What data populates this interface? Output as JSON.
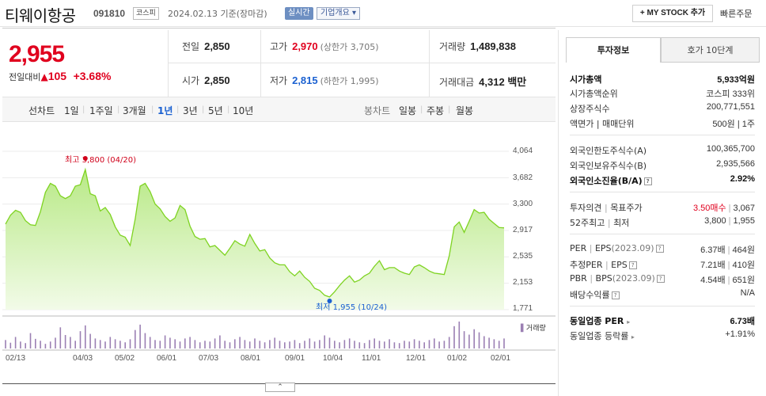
{
  "header": {
    "name": "티웨이항공",
    "code": "091810",
    "market": "코스피",
    "date": "2024.02.13  기준(장마감)",
    "realtime": "실시간",
    "overview": "기업개요 ▾",
    "mystock_plus": "+",
    "mystock": "MY STOCK 추가",
    "quick_order": "빠른주문"
  },
  "price": {
    "current": "2,955",
    "change_label": "전일대비",
    "change_arrow": "▲",
    "change_value": "105",
    "change_pct": "+3.68%"
  },
  "stats": {
    "prev_label": "전일",
    "prev": "2,850",
    "high_label": "고가",
    "high": "2,970",
    "upper": "(상한가 3,705)",
    "volume_label": "거래량",
    "volume": "1,489,838",
    "open_label": "시가",
    "open": "2,850",
    "low_label": "저가",
    "low": "2,815",
    "lower": "(하한가 1,995)",
    "amount_label": "거래대금",
    "amount": "4,312 백만"
  },
  "period_bar": {
    "line_label": "선차트",
    "periods": [
      "1일",
      "1주일",
      "3개월",
      "1년",
      "3년",
      "5년",
      "10년"
    ],
    "selected": "1년",
    "candle_label": "봉차트",
    "candles": [
      "일봉",
      "주봉",
      "월봉"
    ]
  },
  "chart_data": {
    "type": "area",
    "series": [
      {
        "values": [
          3010,
          3140,
          3210,
          3180,
          3060,
          3000,
          2990,
          3190,
          3470,
          3600,
          3560,
          3420,
          3380,
          3420,
          3560,
          3580,
          3800,
          3450,
          3420,
          3200,
          3250,
          3150,
          2970,
          2850,
          2820,
          2700,
          3080,
          3560,
          3600,
          3480,
          3300,
          3230,
          3120,
          3050,
          3100,
          3280,
          3220,
          2980,
          2830,
          2790,
          2800,
          2680,
          2700,
          2630,
          2560,
          2660,
          2770,
          2720,
          2690,
          2860,
          2730,
          2620,
          2640,
          2520,
          2450,
          2420,
          2420,
          2320,
          2260,
          2330,
          2240,
          2180,
          2080,
          2050,
          1980,
          1955,
          2030,
          2120,
          2200,
          2260,
          2170,
          2200,
          2260,
          2300,
          2400,
          2480,
          2350,
          2380,
          2380,
          2330,
          2300,
          2280,
          2390,
          2420,
          2380,
          2330,
          2300,
          2290,
          2280,
          2550,
          2970,
          3040,
          2890,
          3050,
          3220,
          3170,
          3180,
          3080,
          3020,
          2960,
          2955
        ]
      }
    ],
    "x_ticks": [
      "02/13",
      "04/03",
      "05/02",
      "06/01",
      "07/03",
      "08/01",
      "09/01",
      "10/04",
      "11/01",
      "12/01",
      "01/02",
      "02/01"
    ],
    "y_ticks": [
      "4,064",
      "3,682",
      "3,300",
      "2,917",
      "2,535",
      "2,153",
      "1,771"
    ],
    "ylim": [
      1771,
      4064
    ],
    "high_annotation": "최고 3,800 (04/20)",
    "low_annotation": "최저 1,955 (10/24)",
    "volume_label": "거래량",
    "volume": [
      22,
      15,
      30,
      18,
      14,
      40,
      25,
      20,
      12,
      18,
      28,
      55,
      35,
      30,
      20,
      45,
      60,
      38,
      26,
      22,
      18,
      30,
      24,
      20,
      16,
      24,
      48,
      62,
      40,
      30,
      22,
      20,
      34,
      28,
      24,
      18,
      26,
      30,
      22,
      16,
      20,
      18,
      26,
      34,
      20,
      16,
      24,
      30,
      22,
      18,
      26,
      20,
      16,
      22,
      28,
      20,
      16,
      18,
      22,
      14,
      20,
      26,
      18,
      22,
      34,
      28,
      20,
      16,
      22,
      26,
      20,
      16,
      14,
      22,
      26,
      20,
      18,
      24,
      16,
      14,
      20,
      18,
      24,
      20,
      16,
      22,
      26,
      18,
      20,
      30,
      58,
      70,
      45,
      36,
      50,
      42,
      32,
      28,
      24,
      20,
      26
    ],
    "colors": {
      "area": "#b8e986",
      "line": "#7ed321",
      "high": "#d0021b",
      "low": "#1b61d1",
      "volume": "#9b7fb3"
    }
  },
  "toggle": "⌃",
  "right_panel": {
    "tabs": [
      "투자정보",
      "호가 10단계"
    ],
    "rows": [
      {
        "k": "시가총액",
        "v": "5,933억원",
        "bold": true
      },
      {
        "k": "시가총액순위",
        "v": "코스피  333위"
      },
      {
        "k": "상장주식수",
        "v": "200,771,551"
      },
      {
        "k": "액면가 | 매매단위",
        "v": "500원 | 1주"
      },
      {
        "k": "외국인한도주식수(A)",
        "v": "100,365,700"
      },
      {
        "k": "외국인보유주식수(B)",
        "v": "2,935,566"
      },
      {
        "k": "외국인소진율(B/A)",
        "v": "2.92%",
        "bold": true
      },
      {
        "k": "투자의견",
        "k2": "목표주가",
        "v_red": "3.50매수",
        "v": "3,067"
      },
      {
        "k": "52주최고",
        "k2": "최저",
        "v": "3,800",
        "v2": "1,955"
      },
      {
        "k": "PER",
        "k2": "EPS",
        "k3": "(2023.09)",
        "v": "6.37배",
        "v2": "464원"
      },
      {
        "k": "추정PER",
        "k2": "EPS",
        "v": "7.21배",
        "v2": "410원"
      },
      {
        "k": "PBR",
        "k2": "BPS",
        "k3": "(2023.09)",
        "v": "4.54배",
        "v2": "651원"
      },
      {
        "k": "배당수익률",
        "v": "N/A"
      },
      {
        "k": "동일업종 PER",
        "v": "6.73배",
        "bold": true
      },
      {
        "k": "동일업종 등락률",
        "v": "+1.91%"
      }
    ]
  }
}
